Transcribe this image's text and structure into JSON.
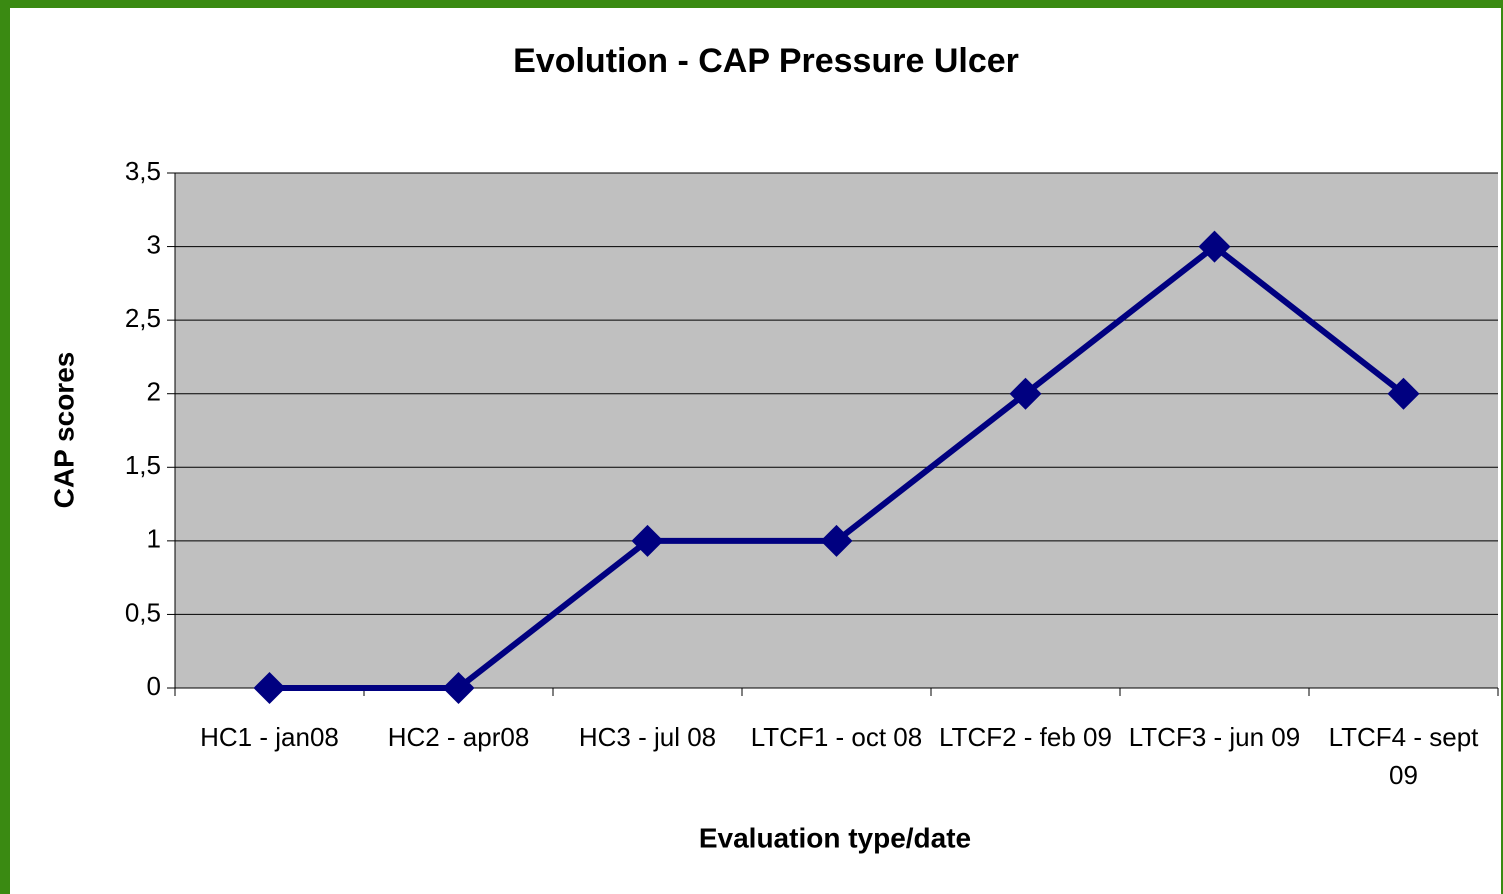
{
  "chart_data": {
    "type": "line",
    "title": "Evolution - CAP Pressure Ulcer",
    "x_label": "Evaluation type/date",
    "y_label": "CAP scores",
    "categories": [
      "HC1 - jan08",
      "HC2 - apr08",
      "HC3 - jul 08",
      "LTCF1 - oct 08",
      "LTCF2 - feb 09",
      "LTCF3 - jun 09",
      "LTCF4 - sept 09"
    ],
    "values": [
      0,
      0,
      1,
      1,
      2,
      3,
      2
    ],
    "color": "#000080",
    "ylim": [
      0,
      3.5
    ],
    "yticks": [
      0,
      {
        "value": 0.5,
        "label": "0,5"
      },
      1,
      {
        "value": 1.5,
        "label": "1,5"
      },
      2,
      {
        "value": 2.5,
        "label": "2,5"
      },
      3,
      {
        "value": 3.5,
        "label": "3,5"
      }
    ],
    "grid": true
  }
}
